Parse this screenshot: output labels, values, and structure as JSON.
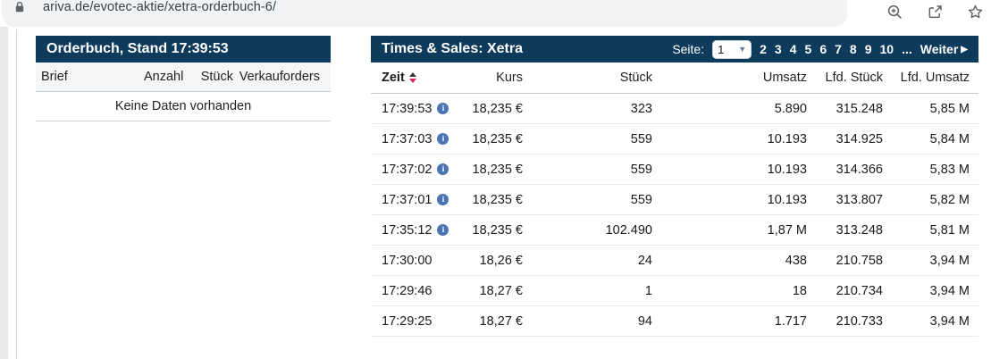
{
  "browser": {
    "url": "ariva.de/evotec-aktie/xetra-orderbuch-6/"
  },
  "colors": {
    "header_bg": "#0e3a5c",
    "bar_gray": "#c9c9c9",
    "bar_red": "#f30b3c",
    "bar_green": "#2e9640",
    "info_blue": "#4a74b4"
  },
  "orderbook": {
    "title": "Orderbuch, Stand 17:39:53",
    "columns": [
      "Brief",
      "Anzahl",
      "Stück",
      "Verkauforders"
    ],
    "empty_message": "Keine Daten vorhanden"
  },
  "times_sales": {
    "title": "Times & Sales: Xetra",
    "pagination": {
      "label": "Seite:",
      "selected": "1",
      "pages": [
        "2",
        "3",
        "4",
        "5",
        "6",
        "7",
        "8",
        "9",
        "10"
      ],
      "ellipsis": "...",
      "next_label": "Weiter",
      "next_arrow": "▶"
    },
    "columns": [
      "Zeit",
      "Kurs",
      "Stück",
      "Umsatz",
      "Lfd. Stück",
      "Lfd. Umsatz"
    ],
    "rows": [
      {
        "zeit": "17:39:53",
        "info": true,
        "kurs": "18,235 €",
        "kurs_bar": 2,
        "stueck": "323",
        "stueck_bar": 2,
        "stueck_bar_color": "gray",
        "umsatz": "5.890",
        "lfd_stueck": "315.248",
        "lfd_umsatz": "5,85 M"
      },
      {
        "zeit": "17:37:03",
        "info": true,
        "kurs": "18,235 €",
        "kurs_bar": 2,
        "stueck": "559",
        "stueck_bar": 2,
        "stueck_bar_color": "gray",
        "umsatz": "10.193",
        "lfd_stueck": "314.925",
        "lfd_umsatz": "5,84 M"
      },
      {
        "zeit": "17:37:02",
        "info": true,
        "kurs": "18,235 €",
        "kurs_bar": 2,
        "stueck": "559",
        "stueck_bar": 2,
        "stueck_bar_color": "gray",
        "umsatz": "10.193",
        "lfd_stueck": "314.366",
        "lfd_umsatz": "5,83 M"
      },
      {
        "zeit": "17:37:01",
        "info": true,
        "kurs": "18,235 €",
        "kurs_bar": 2,
        "stueck": "559",
        "stueck_bar": 2,
        "stueck_bar_color": "gray",
        "umsatz": "10.193",
        "lfd_stueck": "313.807",
        "lfd_umsatz": "5,82 M"
      },
      {
        "zeit": "17:35:12",
        "info": true,
        "kurs": "18,235 €",
        "kurs_bar": 2,
        "stueck": "102.490",
        "stueck_bar": 82,
        "stueck_bar_color": "red",
        "umsatz": "1,87 M",
        "lfd_stueck": "313.248",
        "lfd_umsatz": "5,81 M"
      },
      {
        "zeit": "17:30:00",
        "info": false,
        "kurs": "18,26 €",
        "kurs_bar": 22,
        "stueck": "24",
        "stueck_bar": 2,
        "stueck_bar_color": "red",
        "umsatz": "438",
        "lfd_stueck": "210.758",
        "lfd_umsatz": "3,94 M"
      },
      {
        "zeit": "17:29:46",
        "info": false,
        "kurs": "18,27 €",
        "kurs_bar": 30,
        "stueck": "1",
        "stueck_bar": 2,
        "stueck_bar_color": "gray",
        "umsatz": "18",
        "lfd_stueck": "210.734",
        "lfd_umsatz": "3,94 M"
      },
      {
        "zeit": "17:29:25",
        "info": false,
        "kurs": "18,27 €",
        "kurs_bar": 30,
        "stueck": "94",
        "stueck_bar": 2,
        "stueck_bar_color": "green",
        "umsatz": "1.717",
        "lfd_stueck": "210.733",
        "lfd_umsatz": "3,94 M"
      }
    ]
  }
}
